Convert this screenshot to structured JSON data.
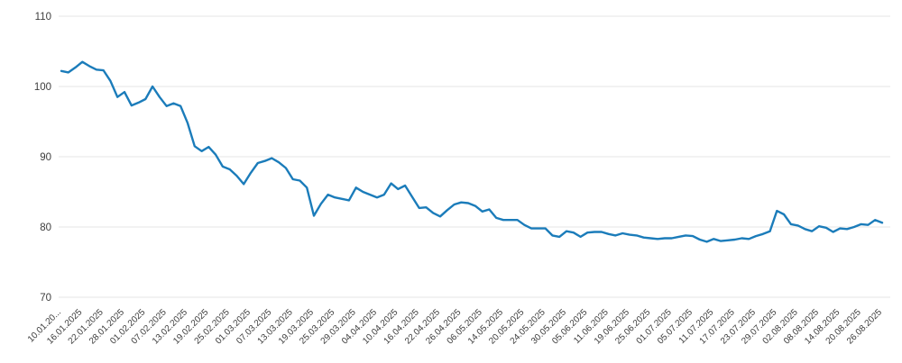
{
  "chart_data": {
    "type": "line",
    "title": "",
    "xlabel": "",
    "ylabel": "",
    "legend": "none",
    "grid": "horizontal-only",
    "background_color": "#ffffff",
    "line_color": "#1b7cba",
    "grid_color": "#e5e5e5",
    "tick_text_color": "#3d3d3d",
    "y_ticks": [
      70,
      80,
      90,
      100,
      110
    ],
    "ylim": [
      70,
      110
    ],
    "label_every_n_points": 3,
    "x_tick_labels": [
      "10.01.20...",
      "16.01.2025",
      "22.01.2025",
      "28.01.2025",
      "01.02.2025",
      "07.02.2025",
      "13.02.2025",
      "19.02.2025",
      "25.02.2025",
      "01.03.2025",
      "07.03.2025",
      "13.03.2025",
      "19.03.2025",
      "25.03.2025",
      "29.03.2025",
      "04.04.2025",
      "10.04.2025",
      "16.04.2025",
      "22.04.2025",
      "26.04.2025",
      "06.05.2025",
      "14.05.2025",
      "20.05.2025",
      "24.05.2025",
      "30.05.2025",
      "05.06.2025",
      "11.06.2025",
      "19.06.2025",
      "25.06.2025",
      "01.07.2025",
      "05.07.2025",
      "11.07.2025",
      "17.07.2025",
      "23.07.2025",
      "29.07.2025",
      "02.08.2025",
      "08.08.2025",
      "14.08.2025",
      "20.08.2025",
      "26.08.2025"
    ],
    "values": [
      102.2,
      102.0,
      102.7,
      103.5,
      102.9,
      102.4,
      102.3,
      100.8,
      98.5,
      99.2,
      97.3,
      97.7,
      98.2,
      100.0,
      98.5,
      97.2,
      97.6,
      97.2,
      94.8,
      91.5,
      90.8,
      91.4,
      90.3,
      88.6,
      88.2,
      87.3,
      86.1,
      87.7,
      89.1,
      89.4,
      89.8,
      89.2,
      88.4,
      86.8,
      86.6,
      85.6,
      81.6,
      83.3,
      84.6,
      84.2,
      84.0,
      83.8,
      85.6,
      85.0,
      84.6,
      84.2,
      84.6,
      86.2,
      85.4,
      85.9,
      84.3,
      82.7,
      82.8,
      82.0,
      81.5,
      82.4,
      83.2,
      83.5,
      83.4,
      83.0,
      82.2,
      82.5,
      81.3,
      81.0,
      81.0,
      81.0,
      80.3,
      79.8,
      79.8,
      79.8,
      78.8,
      78.6,
      79.4,
      79.2,
      78.6,
      79.2,
      79.3,
      79.3,
      79.0,
      78.8,
      79.1,
      78.9,
      78.8,
      78.5,
      78.4,
      78.3,
      78.4,
      78.4,
      78.6,
      78.8,
      78.7,
      78.2,
      77.9,
      78.3,
      78.0,
      78.1,
      78.2,
      78.4,
      78.3,
      78.7,
      79.0,
      79.4,
      82.3,
      81.8,
      80.4,
      80.2,
      79.7,
      79.4,
      80.1,
      79.9,
      79.3,
      79.8,
      79.7,
      80.0,
      80.4,
      80.3,
      81.0,
      80.6
    ]
  }
}
